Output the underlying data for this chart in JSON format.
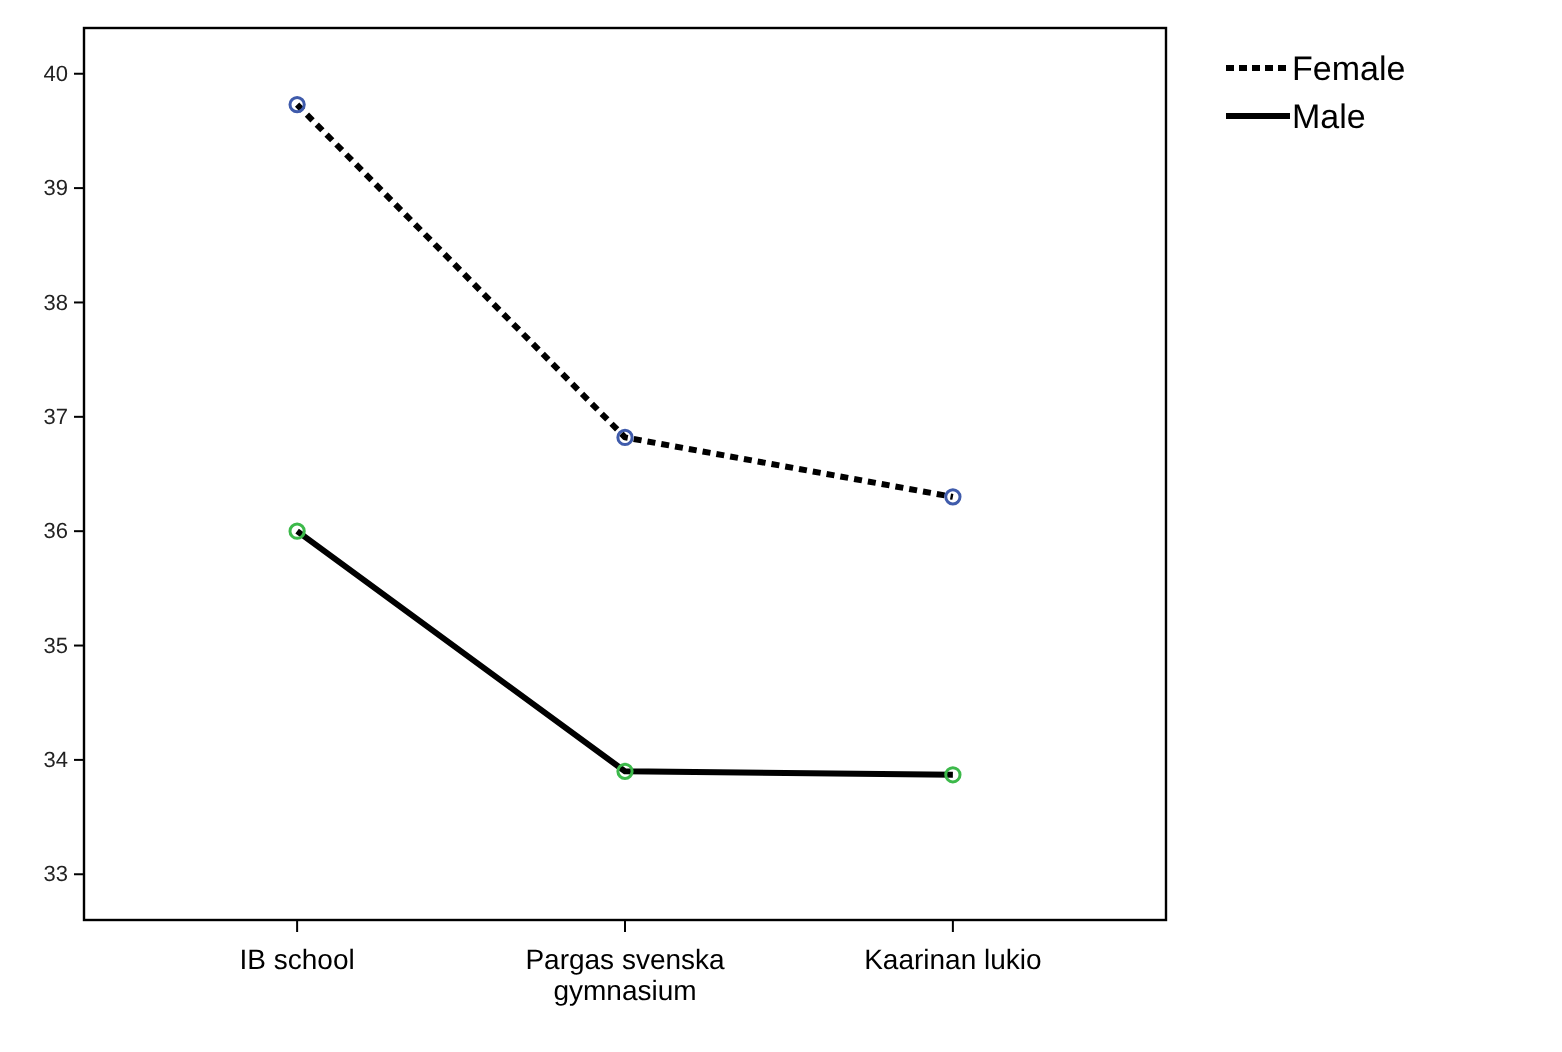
{
  "chart_data": {
    "type": "line",
    "categories": [
      "IB school",
      "Pargas svenska gymnasium",
      "Kaarinan lukio"
    ],
    "series": [
      {
        "name": "Female",
        "color": "#000000",
        "colors": [
          "#3f5bab",
          "#3f5bab",
          "#3f5bab"
        ],
        "line_style": "dotted",
        "values": [
          39.73,
          36.82,
          36.3
        ]
      },
      {
        "name": "Male",
        "color": "#000000",
        "colors": [
          "#3cb94a",
          "#3cb94a",
          "#3cb94a"
        ],
        "line_style": "solid",
        "values": [
          36.0,
          33.9,
          33.87
        ]
      }
    ],
    "ylim": [
      32.6,
      40.4
    ],
    "yticks": [
      33,
      34,
      35,
      36,
      37,
      38,
      39,
      40
    ],
    "marker": "circle",
    "legend": "top right",
    "grid": false
  }
}
